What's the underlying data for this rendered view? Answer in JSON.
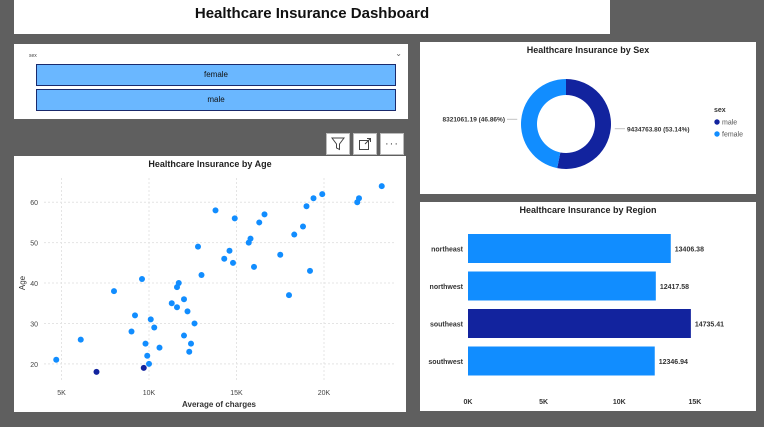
{
  "dashboard": {
    "title": "Healthcare Insurance Dashboard"
  },
  "slicer": {
    "header": "sex",
    "options": [
      "female",
      "male"
    ]
  },
  "toolbar": {
    "more_label": "···"
  },
  "colors": {
    "primary": "#118dff",
    "dark": "#12239e",
    "light_button": "#6ab7ff"
  },
  "scatter": {
    "chart_data": {
      "type": "scatter",
      "title": "Healthcare Insurance by Age",
      "xlabel": "Average of charges",
      "ylabel": "Age",
      "xlim": [
        4000,
        24000
      ],
      "ylim": [
        16,
        66
      ],
      "x_ticks": [
        5000,
        10000,
        15000,
        20000
      ],
      "x_tick_labels": [
        "5K",
        "10K",
        "15K",
        "20K"
      ],
      "y_ticks": [
        20,
        30,
        40,
        50,
        60
      ],
      "grid": true,
      "points": [
        {
          "x": 4700,
          "y": 21
        },
        {
          "x": 6100,
          "y": 26
        },
        {
          "x": 7000,
          "y": 18,
          "highlight": true
        },
        {
          "x": 8000,
          "y": 38
        },
        {
          "x": 9200,
          "y": 32
        },
        {
          "x": 9000,
          "y": 28
        },
        {
          "x": 9600,
          "y": 41
        },
        {
          "x": 9800,
          "y": 25
        },
        {
          "x": 9700,
          "y": 19,
          "highlight": true
        },
        {
          "x": 9900,
          "y": 22
        },
        {
          "x": 10100,
          "y": 31
        },
        {
          "x": 10300,
          "y": 29
        },
        {
          "x": 10000,
          "y": 20
        },
        {
          "x": 10600,
          "y": 24
        },
        {
          "x": 11300,
          "y": 35
        },
        {
          "x": 11700,
          "y": 40
        },
        {
          "x": 11600,
          "y": 34
        },
        {
          "x": 11600,
          "y": 39
        },
        {
          "x": 12000,
          "y": 27
        },
        {
          "x": 12000,
          "y": 36
        },
        {
          "x": 12200,
          "y": 33
        },
        {
          "x": 12400,
          "y": 25
        },
        {
          "x": 12300,
          "y": 23
        },
        {
          "x": 12600,
          "y": 30
        },
        {
          "x": 12800,
          "y": 49
        },
        {
          "x": 13000,
          "y": 42
        },
        {
          "x": 13800,
          "y": 58
        },
        {
          "x": 14300,
          "y": 46
        },
        {
          "x": 14600,
          "y": 48
        },
        {
          "x": 14800,
          "y": 45
        },
        {
          "x": 14900,
          "y": 56
        },
        {
          "x": 15800,
          "y": 51
        },
        {
          "x": 15700,
          "y": 50
        },
        {
          "x": 16000,
          "y": 44
        },
        {
          "x": 16300,
          "y": 55
        },
        {
          "x": 16600,
          "y": 57
        },
        {
          "x": 17500,
          "y": 47
        },
        {
          "x": 18000,
          "y": 37
        },
        {
          "x": 18300,
          "y": 52
        },
        {
          "x": 18800,
          "y": 54
        },
        {
          "x": 19000,
          "y": 59
        },
        {
          "x": 19200,
          "y": 43
        },
        {
          "x": 19400,
          "y": 61
        },
        {
          "x": 19900,
          "y": 62
        },
        {
          "x": 21900,
          "y": 60
        },
        {
          "x": 22000,
          "y": 61
        },
        {
          "x": 23300,
          "y": 64
        }
      ]
    }
  },
  "donut": {
    "chart_data": {
      "type": "pie",
      "title": "Healthcare Insurance by Sex",
      "legend_title": "sex",
      "legend_position": "right",
      "slices": [
        {
          "name": "male",
          "value": 9434763.8,
          "label": "9434763.80 (53.14%)",
          "color": "#12239e"
        },
        {
          "name": "female",
          "value": 8321061.19,
          "label": "8321061.19 (46.86%)",
          "color": "#118dff"
        }
      ]
    }
  },
  "bars": {
    "chart_data": {
      "type": "bar",
      "orientation": "horizontal",
      "title": "Healthcare Insurance by Region",
      "categories": [
        "northeast",
        "northwest",
        "southeast",
        "southwest"
      ],
      "values": [
        13406.38,
        12417.58,
        14735.41,
        12346.94
      ],
      "value_labels": [
        "13406.38",
        "12417.58",
        "14735.41",
        "12346.94"
      ],
      "highlight_index": 2,
      "xlim": [
        0,
        16000
      ],
      "x_ticks": [
        0,
        5000,
        10000,
        15000
      ],
      "x_tick_labels": [
        "0K",
        "5K",
        "10K",
        "15K"
      ]
    }
  }
}
